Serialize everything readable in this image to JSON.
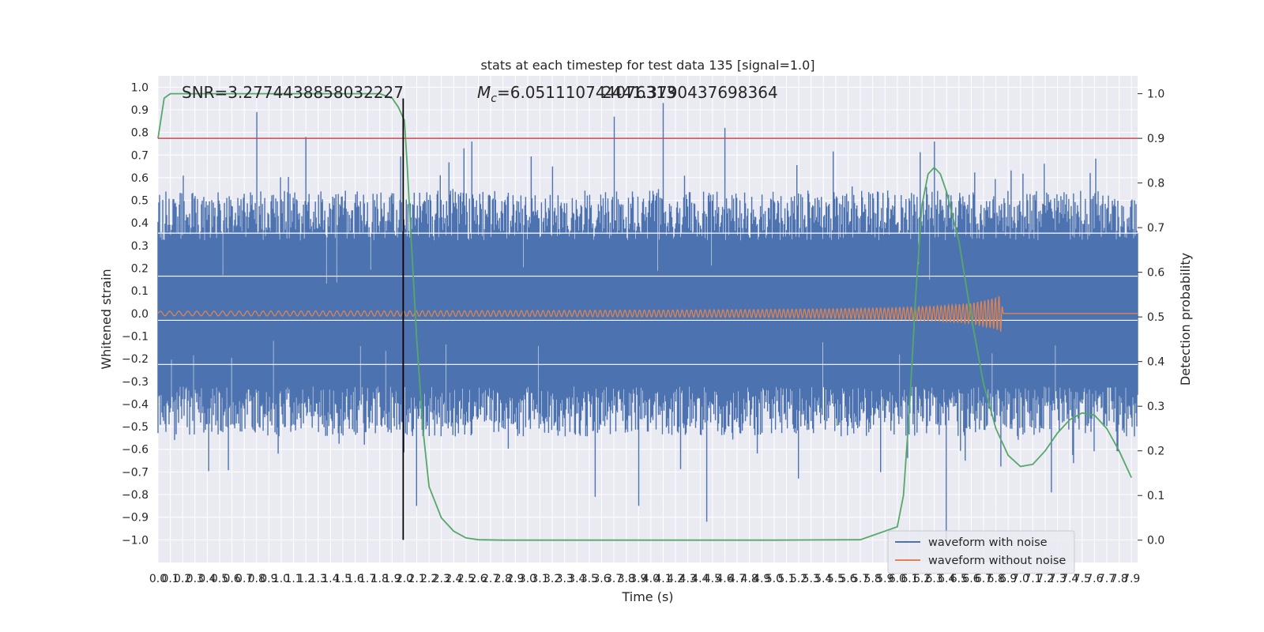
{
  "chart_data": {
    "type": "line",
    "title": "stats at each timestep for test data 135 [signal=1.0]",
    "xlabel": "Time (s)",
    "ylabel_left": "Whitened strain",
    "ylabel_right": "Detection probability",
    "xlim": [
      0.0,
      7.95
    ],
    "ylim_left": [
      -1.1,
      1.05
    ],
    "ylim_right": [
      -0.05,
      1.04
    ],
    "x_ticks": [
      0.0,
      0.1,
      0.2,
      0.3,
      0.4,
      0.5,
      0.6,
      0.7,
      0.8,
      0.9,
      1.0,
      1.1,
      1.2,
      1.3,
      1.4,
      1.5,
      1.6,
      1.7,
      1.8,
      1.9,
      2.0,
      2.1,
      2.2,
      2.3,
      2.4,
      2.5,
      2.6,
      2.7,
      2.8,
      2.9,
      3.0,
      3.1,
      3.2,
      3.3,
      3.4,
      3.5,
      3.6,
      3.7,
      3.8,
      3.9,
      4.0,
      4.1,
      4.2,
      4.3,
      4.4,
      4.5,
      4.6,
      4.7,
      4.8,
      4.9,
      5.0,
      5.1,
      5.2,
      5.3,
      5.4,
      5.5,
      5.6,
      5.7,
      5.8,
      5.9,
      6.0,
      6.1,
      6.2,
      6.3,
      6.4,
      6.5,
      6.6,
      6.7,
      6.8,
      6.9,
      7.0,
      7.1,
      7.2,
      7.3,
      7.4,
      7.5,
      7.6,
      7.7,
      7.8,
      7.9
    ],
    "y_ticks_left": [
      -1.0,
      -0.9,
      -0.8,
      -0.7,
      -0.6,
      -0.5,
      -0.4,
      -0.3,
      -0.2,
      -0.1,
      0.0,
      0.1,
      0.2,
      0.3,
      0.4,
      0.5,
      0.6,
      0.7,
      0.8,
      0.9,
      1.0
    ],
    "y_ticks_right": [
      0.0,
      0.1,
      0.2,
      0.3,
      0.4,
      0.5,
      0.6,
      0.7,
      0.8,
      0.9,
      1.0
    ],
    "grid": true,
    "legend_position": "lower-right",
    "annotations": {
      "snr": "SNR=3.2774438858032227",
      "mc_symbol": "M",
      "mc_subscript": "c",
      "mc_value": "=6.051110744076313",
      "mc_overlap": "2441.3790437698364"
    },
    "series": [
      {
        "name": "waveform with noise",
        "axis": "left",
        "color": "#4c72b0",
        "style": "noise",
        "envelope_typical": 0.4,
        "upper_peaks": [
          [
            0.8,
            0.89
          ],
          [
            1.2,
            0.78
          ],
          [
            2.55,
            0.76
          ],
          [
            3.7,
            0.87
          ],
          [
            4.1,
            0.93
          ],
          [
            4.6,
            0.82
          ],
          [
            6.3,
            0.76
          ]
        ],
        "lower_peaks": [
          [
            2.1,
            -0.85
          ],
          [
            3.55,
            -0.81
          ],
          [
            3.9,
            -0.85
          ],
          [
            4.45,
            -0.92
          ],
          [
            6.4,
            -1.0
          ],
          [
            6.55,
            -0.65
          ],
          [
            7.25,
            -0.79
          ]
        ]
      },
      {
        "name": "waveform without noise",
        "axis": "left",
        "color": "#dd8452",
        "style": "chirp",
        "x": [
          0.0,
          1.0,
          2.0,
          3.0,
          4.0,
          5.0,
          5.5,
          6.0,
          6.3,
          6.6,
          6.8,
          6.84,
          6.86,
          7.95
        ],
        "amplitude": [
          0.01,
          0.011,
          0.012,
          0.013,
          0.015,
          0.018,
          0.021,
          0.026,
          0.032,
          0.045,
          0.07,
          0.08,
          0.0,
          0.0
        ]
      },
      {
        "name": "",
        "axis": "right",
        "color": "#55a868",
        "style": "line",
        "x": [
          0.0,
          0.05,
          0.1,
          0.3,
          0.6,
          1.0,
          1.5,
          1.8,
          1.9,
          1.95,
          2.0,
          2.02,
          2.05,
          2.1,
          2.15,
          2.2,
          2.3,
          2.4,
          2.5,
          2.6,
          2.8,
          3.0,
          4.0,
          5.0,
          5.7,
          6.0,
          6.05,
          6.1,
          6.15,
          6.2,
          6.25,
          6.3,
          6.35,
          6.4,
          6.5,
          6.6,
          6.7,
          6.8,
          6.9,
          7.0,
          7.1,
          7.2,
          7.3,
          7.4,
          7.5,
          7.6,
          7.7,
          7.8,
          7.9
        ],
        "y": [
          0.9,
          0.99,
          1.0,
          1.0,
          1.0,
          1.0,
          1.0,
          1.0,
          0.99,
          0.97,
          0.94,
          0.85,
          0.7,
          0.45,
          0.25,
          0.12,
          0.05,
          0.02,
          0.005,
          0.001,
          0.0,
          0.0,
          0.0,
          0.0,
          0.001,
          0.03,
          0.1,
          0.3,
          0.55,
          0.75,
          0.82,
          0.835,
          0.82,
          0.78,
          0.67,
          0.5,
          0.35,
          0.25,
          0.19,
          0.165,
          0.17,
          0.2,
          0.24,
          0.27,
          0.285,
          0.28,
          0.25,
          0.2,
          0.14
        ]
      },
      {
        "name": "",
        "axis": "right",
        "color": "#c44e52",
        "style": "hline",
        "y": 0.9
      },
      {
        "name": "",
        "axis": "left",
        "color": "#000000",
        "style": "vline",
        "x": 1.99,
        "y_range": [
          -1.0,
          0.95
        ]
      }
    ]
  }
}
